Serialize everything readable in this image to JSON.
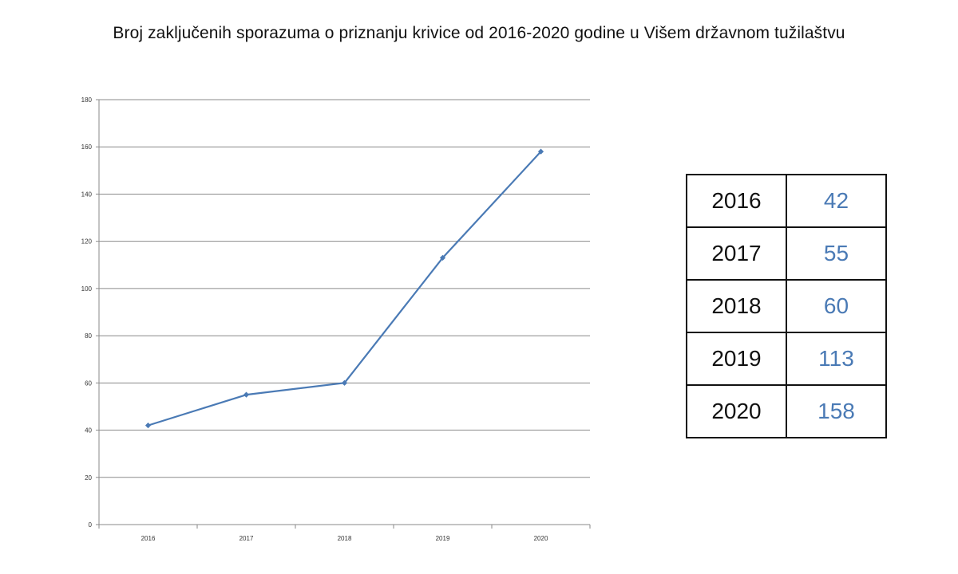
{
  "title": "Broj zaključenih sporazuma o priznanju krivice od 2016-2020 godine u Višem državnom tužilaštvu",
  "colors": {
    "line": "#4a7ab5",
    "grid": "#8a8a8a",
    "axis": "#8a8a8a",
    "table_value": "#4a7ab5"
  },
  "chart_data": {
    "type": "line",
    "title": "Broj zaključenih sporazuma o priznanju krivice od 2016-2020 godine u Višem državnom tužilaštvu",
    "x": [
      "2016",
      "2017",
      "2018",
      "2019",
      "2020"
    ],
    "series": [
      {
        "values": [
          42,
          55,
          60,
          113,
          158
        ]
      }
    ],
    "ylim": [
      0,
      180
    ],
    "yticks": [
      0,
      20,
      40,
      60,
      80,
      100,
      120,
      140,
      160,
      180
    ],
    "grid": true,
    "legend": "none",
    "marker": "diamond"
  },
  "table": {
    "rows": [
      {
        "year": "2016",
        "value": "42"
      },
      {
        "year": "2017",
        "value": "55"
      },
      {
        "year": "2018",
        "value": "60"
      },
      {
        "year": "2019",
        "value": "113"
      },
      {
        "year": "2020",
        "value": "158"
      }
    ]
  }
}
